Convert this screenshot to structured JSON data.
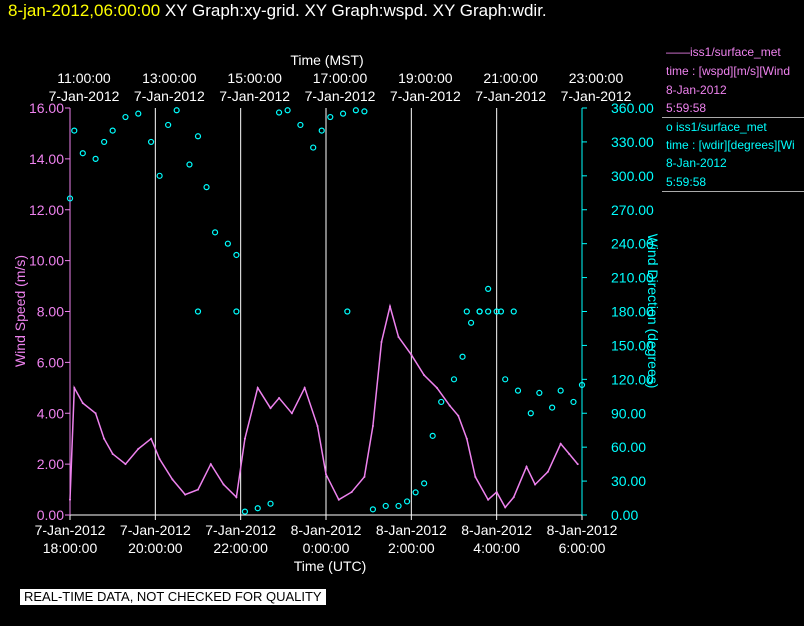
{
  "header": {
    "date": "8-jan-2012,06:00:00",
    "titles": "XY Graph:xy-grid.  XY Graph:wspd.  XY Graph:wdir."
  },
  "legend": {
    "wspd": {
      "line1": "——iss1/surface_met",
      "line2": "time : [wspd][m/s][Wind",
      "line3": "8-Jan-2012",
      "line4": "5:59:58",
      "color": "#ee82ee"
    },
    "wdir": {
      "line1": "o  iss1/surface_met",
      "line2": "time : [wdir][degrees][Wi",
      "line3": "8-Jan-2012",
      "line4": "5:59:58",
      "color": "#00ffff"
    }
  },
  "footer": "REAL-TIME DATA, NOT CHECKED FOR QUALITY",
  "chart_data": {
    "type": "line",
    "top_axis": {
      "label": "Time (MST)",
      "ticks": [
        {
          "time": "11:00:00",
          "date": "7-Jan-2012"
        },
        {
          "time": "13:00:00",
          "date": "7-Jan-2012"
        },
        {
          "time": "15:00:00",
          "date": "7-Jan-2012"
        },
        {
          "time": "17:00:00",
          "date": "7-Jan-2012"
        },
        {
          "time": "19:00:00",
          "date": "7-Jan-2012"
        },
        {
          "time": "21:00:00",
          "date": "7-Jan-2012"
        },
        {
          "time": "23:00:00",
          "date": "7-Jan-2012"
        }
      ]
    },
    "bottom_axis": {
      "label": "Time (UTC)",
      "ticks": [
        {
          "date": "7-Jan-2012",
          "time": "18:00:00"
        },
        {
          "date": "7-Jan-2012",
          "time": "20:00:00"
        },
        {
          "date": "7-Jan-2012",
          "time": "22:00:00"
        },
        {
          "date": "8-Jan-2012",
          "time": "0:00:00"
        },
        {
          "date": "8-Jan-2012",
          "time": "2:00:00"
        },
        {
          "date": "8-Jan-2012",
          "time": "4:00:00"
        },
        {
          "date": "8-Jan-2012",
          "time": "6:00:00"
        }
      ]
    },
    "xlim_hours_utc": [
      18,
      30
    ],
    "left_axis": {
      "label": "Wind Speed (m/s)",
      "ylim": [
        0,
        16
      ],
      "ticks": [
        "0.00",
        "2.00",
        "4.00",
        "6.00",
        "8.00",
        "10.00",
        "12.00",
        "14.00",
        "16.00"
      ],
      "color": "#ee82ee"
    },
    "right_axis": {
      "label": "Wind Direction (degrees)",
      "ylim": [
        0,
        360
      ],
      "ticks": [
        "0.00",
        "30.00",
        "60.00",
        "90.00",
        "120.00",
        "150.00",
        "180.00",
        "210.00",
        "240.00",
        "270.00",
        "300.00",
        "330.00",
        "360.00"
      ],
      "color": "#00ffff"
    },
    "series": [
      {
        "name": "iss1/surface_met wspd",
        "color": "#ee82ee",
        "x": [
          18.0,
          18.1,
          18.3,
          18.6,
          18.8,
          19.0,
          19.3,
          19.6,
          19.9,
          20.1,
          20.4,
          20.7,
          21.0,
          21.3,
          21.6,
          21.9,
          22.1,
          22.4,
          22.7,
          22.9,
          23.2,
          23.5,
          23.8,
          24.0,
          24.3,
          24.6,
          24.9,
          25.1,
          25.3,
          25.5,
          25.7,
          26.0,
          26.3,
          26.6,
          26.9,
          27.1,
          27.3,
          27.5,
          27.8,
          28.0,
          28.2,
          28.4,
          28.7,
          28.9,
          29.2,
          29.5,
          29.7,
          29.9
        ],
        "y": [
          0.6,
          5.0,
          4.4,
          4.0,
          3.0,
          2.4,
          2.0,
          2.6,
          3.0,
          2.2,
          1.4,
          0.8,
          1.0,
          2.0,
          1.2,
          0.7,
          3.0,
          5.0,
          4.2,
          4.6,
          4.0,
          5.0,
          3.5,
          1.6,
          0.6,
          0.9,
          1.5,
          3.5,
          6.8,
          8.2,
          7.0,
          6.3,
          5.5,
          5.0,
          4.3,
          3.9,
          3.0,
          1.5,
          0.6,
          0.9,
          0.3,
          0.7,
          1.9,
          1.2,
          1.7,
          2.8,
          2.4,
          2.0
        ]
      },
      {
        "name": "iss1/surface_met wdir",
        "color": "#00ffff",
        "x": [
          18.0,
          18.1,
          18.3,
          18.6,
          18.8,
          19.0,
          19.3,
          19.6,
          19.9,
          20.1,
          20.3,
          20.5,
          20.8,
          21.0,
          21.2,
          21.4,
          21.7,
          21.9,
          22.1,
          22.4,
          22.7,
          22.9,
          23.1,
          23.4,
          23.7,
          23.9,
          24.1,
          24.4,
          24.7,
          24.9,
          25.1,
          25.4,
          25.7,
          25.9,
          26.1,
          26.3,
          26.5,
          26.7,
          27.0,
          27.2,
          27.4,
          27.6,
          27.8,
          28.0,
          28.2,
          28.5,
          28.8,
          29.0,
          29.3,
          29.5,
          29.8,
          30.0
        ],
        "y": [
          280,
          340,
          320,
          315,
          330,
          340,
          352,
          355,
          330,
          300,
          345,
          358,
          310,
          335,
          290,
          250,
          240,
          230,
          3,
          6,
          10,
          356,
          358,
          345,
          325,
          340,
          352,
          355,
          358,
          357,
          5,
          8,
          8,
          12,
          20,
          28,
          70,
          100,
          120,
          140,
          170,
          180,
          200,
          180,
          120,
          110,
          90,
          108,
          95,
          110,
          100,
          115
        ]
      }
    ],
    "wdir_markers_180": [
      21.0,
      21.9,
      24.5,
      27.3,
      27.6,
      27.8,
      28.1,
      28.4
    ],
    "grid": true
  }
}
